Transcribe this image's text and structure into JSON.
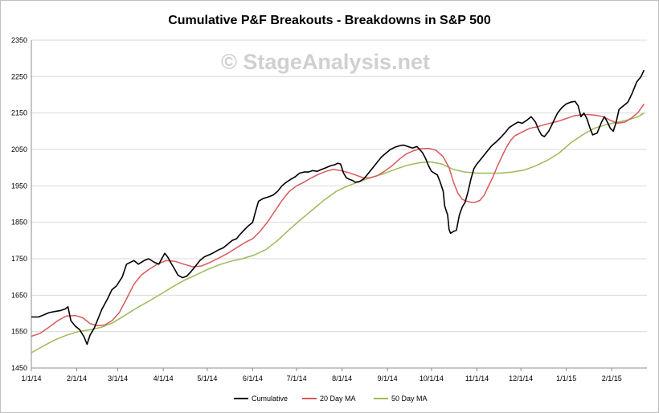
{
  "chart_data": {
    "type": "line",
    "title": "Cumulative P&F Breakouts - Breakdowns in S&P 500",
    "watermark": "© StageAnalysis.net",
    "xlabel": "",
    "ylabel": "",
    "ylim": [
      1450,
      2350
    ],
    "yticks": [
      1450,
      1550,
      1650,
      1750,
      1850,
      1950,
      2050,
      2150,
      2250,
      2350
    ],
    "x_ticks": [
      {
        "day": 0,
        "label": "1/1/14"
      },
      {
        "day": 31,
        "label": "2/1/14"
      },
      {
        "day": 59,
        "label": "3/1/14"
      },
      {
        "day": 90,
        "label": "4/1/14"
      },
      {
        "day": 120,
        "label": "5/1/14"
      },
      {
        "day": 151,
        "label": "6/1/14"
      },
      {
        "day": 181,
        "label": "7/1/14"
      },
      {
        "day": 212,
        "label": "8/1/14"
      },
      {
        "day": 243,
        "label": "9/1/14"
      },
      {
        "day": 273,
        "label": "10/1/14"
      },
      {
        "day": 304,
        "label": "11/1/14"
      },
      {
        "day": 334,
        "label": "12/1/14"
      },
      {
        "day": 365,
        "label": "1/1/15"
      },
      {
        "day": 396,
        "label": "2/1/15"
      }
    ],
    "x_range_days": [
      0,
      420
    ],
    "grid": "horizontal",
    "legend_position": "bottom",
    "series": [
      {
        "name": "Cumulative",
        "color": "#000000",
        "points": [
          [
            0,
            1590
          ],
          [
            5,
            1590
          ],
          [
            8,
            1595
          ],
          [
            12,
            1602
          ],
          [
            16,
            1605
          ],
          [
            20,
            1608
          ],
          [
            23,
            1612
          ],
          [
            25,
            1618
          ],
          [
            27,
            1580
          ],
          [
            30,
            1565
          ],
          [
            33,
            1555
          ],
          [
            36,
            1535
          ],
          [
            38,
            1515
          ],
          [
            40,
            1540
          ],
          [
            43,
            1560
          ],
          [
            46,
            1590
          ],
          [
            48,
            1610
          ],
          [
            52,
            1640
          ],
          [
            55,
            1665
          ],
          [
            58,
            1675
          ],
          [
            62,
            1700
          ],
          [
            65,
            1735
          ],
          [
            70,
            1745
          ],
          [
            73,
            1735
          ],
          [
            77,
            1745
          ],
          [
            80,
            1750
          ],
          [
            84,
            1740
          ],
          [
            87,
            1735
          ],
          [
            89,
            1750
          ],
          [
            91,
            1765
          ],
          [
            93,
            1755
          ],
          [
            95,
            1740
          ],
          [
            98,
            1720
          ],
          [
            100,
            1705
          ],
          [
            103,
            1698
          ],
          [
            106,
            1702
          ],
          [
            109,
            1715
          ],
          [
            112,
            1730
          ],
          [
            115,
            1745
          ],
          [
            118,
            1755
          ],
          [
            122,
            1762
          ],
          [
            125,
            1768
          ],
          [
            128,
            1775
          ],
          [
            131,
            1780
          ],
          [
            134,
            1790
          ],
          [
            137,
            1800
          ],
          [
            140,
            1805
          ],
          [
            142,
            1815
          ],
          [
            145,
            1828
          ],
          [
            148,
            1840
          ],
          [
            151,
            1850
          ],
          [
            153,
            1880
          ],
          [
            155,
            1908
          ],
          [
            158,
            1915
          ],
          [
            162,
            1920
          ],
          [
            165,
            1925
          ],
          [
            168,
            1935
          ],
          [
            171,
            1950
          ],
          [
            174,
            1960
          ],
          [
            177,
            1968
          ],
          [
            180,
            1975
          ],
          [
            183,
            1985
          ],
          [
            186,
            1988
          ],
          [
            189,
            1988
          ],
          [
            192,
            1992
          ],
          [
            195,
            1990
          ],
          [
            198,
            1995
          ],
          [
            201,
            2000
          ],
          [
            204,
            2005
          ],
          [
            207,
            2008
          ],
          [
            209,
            2012
          ],
          [
            211,
            2010
          ],
          [
            213,
            1985
          ],
          [
            215,
            1972
          ],
          [
            217,
            1968
          ],
          [
            219,
            1965
          ],
          [
            221,
            1960
          ],
          [
            224,
            1962
          ],
          [
            227,
            1970
          ],
          [
            230,
            1985
          ],
          [
            233,
            2000
          ],
          [
            236,
            2015
          ],
          [
            239,
            2030
          ],
          [
            242,
            2040
          ],
          [
            245,
            2050
          ],
          [
            248,
            2056
          ],
          [
            251,
            2060
          ],
          [
            254,
            2062
          ],
          [
            257,
            2058
          ],
          [
            260,
            2054
          ],
          [
            263,
            2058
          ],
          [
            265,
            2050
          ],
          [
            267,
            2040
          ],
          [
            269,
            2025
          ],
          [
            271,
            2005
          ],
          [
            273,
            1990
          ],
          [
            275,
            1985
          ],
          [
            277,
            1980
          ],
          [
            279,
            1960
          ],
          [
            281,
            1935
          ],
          [
            282,
            1895
          ],
          [
            284,
            1870
          ],
          [
            285,
            1830
          ],
          [
            286,
            1820
          ],
          [
            288,
            1825
          ],
          [
            290,
            1828
          ],
          [
            292,
            1870
          ],
          [
            294,
            1892
          ],
          [
            296,
            1905
          ],
          [
            298,
            1935
          ],
          [
            300,
            1970
          ],
          [
            302,
            1998
          ],
          [
            304,
            2010
          ],
          [
            306,
            2020
          ],
          [
            308,
            2030
          ],
          [
            311,
            2045
          ],
          [
            314,
            2060
          ],
          [
            317,
            2070
          ],
          [
            320,
            2082
          ],
          [
            323,
            2095
          ],
          [
            326,
            2110
          ],
          [
            329,
            2118
          ],
          [
            332,
            2125
          ],
          [
            335,
            2122
          ],
          [
            338,
            2130
          ],
          [
            341,
            2140
          ],
          [
            344,
            2125
          ],
          [
            346,
            2105
          ],
          [
            348,
            2090
          ],
          [
            350,
            2085
          ],
          [
            353,
            2100
          ],
          [
            356,
            2125
          ],
          [
            359,
            2150
          ],
          [
            362,
            2165
          ],
          [
            365,
            2175
          ],
          [
            368,
            2180
          ],
          [
            371,
            2182
          ],
          [
            373,
            2170
          ],
          [
            375,
            2140
          ],
          [
            377,
            2150
          ],
          [
            379,
            2135
          ],
          [
            381,
            2110
          ],
          [
            383,
            2090
          ],
          [
            386,
            2095
          ],
          [
            389,
            2125
          ],
          [
            391,
            2140
          ],
          [
            393,
            2125
          ],
          [
            395,
            2108
          ],
          [
            397,
            2100
          ],
          [
            399,
            2125
          ],
          [
            401,
            2160
          ],
          [
            404,
            2170
          ],
          [
            407,
            2180
          ],
          [
            410,
            2205
          ],
          [
            413,
            2235
          ],
          [
            416,
            2250
          ],
          [
            418,
            2268
          ]
        ]
      },
      {
        "name": "20 Day MA",
        "color": "#d9595b",
        "points": [
          [
            0,
            1537
          ],
          [
            6,
            1545
          ],
          [
            12,
            1562
          ],
          [
            18,
            1580
          ],
          [
            24,
            1593
          ],
          [
            30,
            1594
          ],
          [
            35,
            1588
          ],
          [
            40,
            1572
          ],
          [
            45,
            1566
          ],
          [
            50,
            1568
          ],
          [
            55,
            1580
          ],
          [
            60,
            1602
          ],
          [
            65,
            1640
          ],
          [
            70,
            1680
          ],
          [
            75,
            1705
          ],
          [
            80,
            1720
          ],
          [
            86,
            1735
          ],
          [
            92,
            1745
          ],
          [
            98,
            1743
          ],
          [
            104,
            1735
          ],
          [
            110,
            1728
          ],
          [
            116,
            1730
          ],
          [
            122,
            1740
          ],
          [
            128,
            1752
          ],
          [
            134,
            1765
          ],
          [
            140,
            1780
          ],
          [
            146,
            1795
          ],
          [
            151,
            1805
          ],
          [
            156,
            1825
          ],
          [
            161,
            1850
          ],
          [
            166,
            1880
          ],
          [
            171,
            1910
          ],
          [
            176,
            1935
          ],
          [
            181,
            1950
          ],
          [
            186,
            1960
          ],
          [
            191,
            1972
          ],
          [
            196,
            1982
          ],
          [
            201,
            1990
          ],
          [
            206,
            1995
          ],
          [
            211,
            1992
          ],
          [
            216,
            1987
          ],
          [
            221,
            1980
          ],
          [
            226,
            1973
          ],
          [
            231,
            1972
          ],
          [
            236,
            1978
          ],
          [
            241,
            1990
          ],
          [
            246,
            2005
          ],
          [
            251,
            2023
          ],
          [
            256,
            2038
          ],
          [
            261,
            2047
          ],
          [
            266,
            2052
          ],
          [
            271,
            2053
          ],
          [
            276,
            2048
          ],
          [
            281,
            2030
          ],
          [
            285,
            2000
          ],
          [
            288,
            1960
          ],
          [
            291,
            1930
          ],
          [
            294,
            1913
          ],
          [
            297,
            1908
          ],
          [
            300,
            1905
          ],
          [
            303,
            1905
          ],
          [
            306,
            1910
          ],
          [
            309,
            1925
          ],
          [
            312,
            1950
          ],
          [
            315,
            1975
          ],
          [
            318,
            2005
          ],
          [
            321,
            2030
          ],
          [
            324,
            2055
          ],
          [
            327,
            2075
          ],
          [
            330,
            2088
          ],
          [
            335,
            2098
          ],
          [
            340,
            2108
          ],
          [
            345,
            2112
          ],
          [
            350,
            2118
          ],
          [
            355,
            2123
          ],
          [
            360,
            2128
          ],
          [
            365,
            2135
          ],
          [
            370,
            2142
          ],
          [
            375,
            2145
          ],
          [
            380,
            2146
          ],
          [
            385,
            2144
          ],
          [
            390,
            2140
          ],
          [
            395,
            2130
          ],
          [
            400,
            2122
          ],
          [
            405,
            2125
          ],
          [
            410,
            2138
          ],
          [
            414,
            2152
          ],
          [
            418,
            2175
          ]
        ]
      },
      {
        "name": "50 Day MA",
        "color": "#9bbb59",
        "points": [
          [
            0,
            1492
          ],
          [
            8,
            1510
          ],
          [
            16,
            1527
          ],
          [
            24,
            1540
          ],
          [
            32,
            1550
          ],
          [
            40,
            1555
          ],
          [
            48,
            1562
          ],
          [
            56,
            1575
          ],
          [
            64,
            1595
          ],
          [
            72,
            1615
          ],
          [
            80,
            1633
          ],
          [
            88,
            1652
          ],
          [
            96,
            1672
          ],
          [
            104,
            1690
          ],
          [
            112,
            1705
          ],
          [
            120,
            1720
          ],
          [
            128,
            1733
          ],
          [
            136,
            1743
          ],
          [
            144,
            1750
          ],
          [
            152,
            1760
          ],
          [
            160,
            1775
          ],
          [
            168,
            1800
          ],
          [
            176,
            1830
          ],
          [
            184,
            1858
          ],
          [
            192,
            1885
          ],
          [
            200,
            1912
          ],
          [
            208,
            1935
          ],
          [
            216,
            1950
          ],
          [
            224,
            1962
          ],
          [
            232,
            1973
          ],
          [
            240,
            1983
          ],
          [
            248,
            1995
          ],
          [
            256,
            2006
          ],
          [
            264,
            2013
          ],
          [
            272,
            2016
          ],
          [
            280,
            2010
          ],
          [
            288,
            1995
          ],
          [
            296,
            1988
          ],
          [
            304,
            1985
          ],
          [
            312,
            1985
          ],
          [
            320,
            1985
          ],
          [
            328,
            1988
          ],
          [
            336,
            1993
          ],
          [
            344,
            2005
          ],
          [
            352,
            2020
          ],
          [
            360,
            2040
          ],
          [
            368,
            2068
          ],
          [
            376,
            2090
          ],
          [
            384,
            2108
          ],
          [
            392,
            2118
          ],
          [
            400,
            2125
          ],
          [
            408,
            2132
          ],
          [
            414,
            2140
          ],
          [
            418,
            2150
          ]
        ]
      }
    ]
  }
}
